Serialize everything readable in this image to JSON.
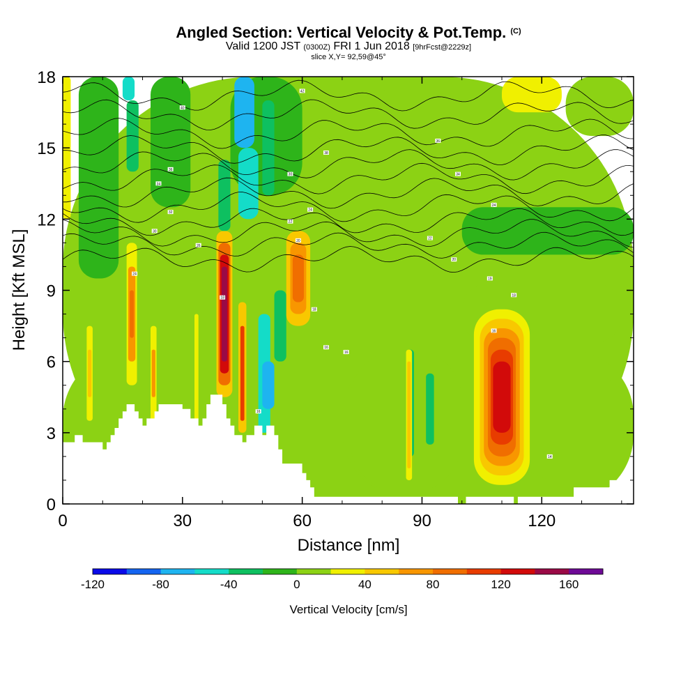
{
  "title": {
    "main": "Angled Section: Vertical Velocity & Pot.Temp.",
    "main_suffix": "(C)",
    "valid_prefix": "Valid 1200 JST",
    "valid_utc": "(0300Z)",
    "valid_date": "FRI 1 Jun 2018",
    "forecast": "[9hrFcst@2229z]",
    "slice": "slice X,Y= 92,59@45°"
  },
  "chart_data": {
    "type": "heatmap",
    "xlabel": "Distance [nm]",
    "ylabel": "Height [Kft MSL]",
    "xlim": [
      0,
      143
    ],
    "ylim": [
      0,
      18
    ],
    "x_ticks": [
      0,
      30,
      60,
      90,
      120
    ],
    "y_ticks": [
      0,
      3,
      6,
      9,
      12,
      15,
      18
    ],
    "colorbar": {
      "label": "Vertical Velocity [cm/s]",
      "min": -120,
      "max": 180,
      "step": 20,
      "tick_values": [
        -120,
        -80,
        -40,
        0,
        40,
        80,
        120,
        160
      ],
      "colors": [
        "#0a0ae8",
        "#1464f0",
        "#1eb4f0",
        "#14dcc8",
        "#0ec060",
        "#2eb41a",
        "#8cd214",
        "#f0f000",
        "#f8c800",
        "#f89600",
        "#f06e00",
        "#e83c00",
        "#d20a0a",
        "#9a0a46",
        "#6e0a96"
      ]
    },
    "background_value": 0,
    "cells": [
      {
        "x0": 0,
        "x1": 143,
        "y0": 0,
        "y1": 18,
        "v": 10
      },
      {
        "x0": 0,
        "x1": 143,
        "y0": 0,
        "y1": 6.5,
        "v": 10
      },
      {
        "x0": 70,
        "x1": 143,
        "y0": 0.3,
        "y1": 6.5,
        "v": 10
      },
      {
        "x0": 72,
        "x1": 100,
        "y0": 0.5,
        "y1": 6.5,
        "v": 0
      },
      {
        "x0": 112,
        "x1": 143,
        "y0": 1.0,
        "y1": 5.5,
        "v": 0
      },
      {
        "x0": 100,
        "x1": 140,
        "y0": 6.8,
        "y1": 9.3,
        "v": 0
      },
      {
        "x0": 60,
        "x1": 100,
        "y0": 9.5,
        "y1": 13.5,
        "v": 0
      },
      {
        "x0": 100,
        "x1": 143,
        "y0": 10.5,
        "y1": 12.5,
        "v": -10
      },
      {
        "x0": 4,
        "x1": 14,
        "y0": 9.5,
        "y1": 18,
        "v": -10
      },
      {
        "x0": 22,
        "x1": 32,
        "y0": 12.5,
        "y1": 18,
        "v": -10
      },
      {
        "x0": 42,
        "x1": 60,
        "y0": 13,
        "y1": 18,
        "v": -10
      },
      {
        "x0": 62,
        "x1": 82,
        "y0": 15,
        "y1": 18,
        "v": 0
      },
      {
        "x0": 100,
        "x1": 126,
        "y0": 13,
        "y1": 15.5,
        "v": 0
      },
      {
        "x0": 126,
        "x1": 143,
        "y0": 15.5,
        "y1": 18,
        "v": 10
      },
      {
        "x0": 110,
        "x1": 125,
        "y0": 16.5,
        "y1": 18,
        "v": 30
      },
      {
        "x0": 0,
        "x1": 2,
        "y0": 12,
        "y1": 18,
        "v": 30
      },
      {
        "x0": 8,
        "x1": 14,
        "y0": 3,
        "y1": 9,
        "v": 0
      },
      {
        "x0": 20,
        "x1": 28,
        "y0": 3,
        "y1": 9,
        "v": 0
      },
      {
        "x0": 30,
        "x1": 36,
        "y0": 4,
        "y1": 9,
        "v": 0
      },
      {
        "x0": 15,
        "x1": 18,
        "y0": 17,
        "y1": 18,
        "v": -50
      },
      {
        "x0": 16,
        "x1": 19,
        "y0": 14,
        "y1": 17,
        "v": -40
      },
      {
        "x0": 43,
        "x1": 48,
        "y0": 15,
        "y1": 18,
        "v": -70
      },
      {
        "x0": 44,
        "x1": 49,
        "y0": 12,
        "y1": 15,
        "v": -50
      },
      {
        "x0": 50,
        "x1": 53,
        "y0": 13,
        "y1": 17,
        "v": -30
      },
      {
        "x0": 39,
        "x1": 42,
        "y0": 11.5,
        "y1": 14.5,
        "v": -40
      },
      {
        "x0": 49,
        "x1": 52,
        "y0": 3,
        "y1": 8,
        "v": -50
      },
      {
        "x0": 50,
        "x1": 53,
        "y0": 4,
        "y1": 6,
        "v": -70
      },
      {
        "x0": 53,
        "x1": 56,
        "y0": 6,
        "y1": 9,
        "v": -30
      },
      {
        "x0": 86,
        "x1": 88,
        "y0": 2,
        "y1": 6.5,
        "v": -30
      },
      {
        "x0": 91,
        "x1": 93,
        "y0": 2.5,
        "y1": 5.5,
        "v": -30
      },
      {
        "x0": 6,
        "x1": 7.5,
        "y0": 3.5,
        "y1": 7.5,
        "v": 30
      },
      {
        "x0": 6.3,
        "x1": 7.2,
        "y0": 4.5,
        "y1": 6.5,
        "v": 50
      },
      {
        "x0": 16,
        "x1": 18.6,
        "y0": 5.0,
        "y1": 11,
        "v": 30
      },
      {
        "x0": 16.4,
        "x1": 18.2,
        "y0": 6,
        "y1": 10,
        "v": 70
      },
      {
        "x0": 16.8,
        "x1": 17.8,
        "y0": 7,
        "y1": 9,
        "v": 90
      },
      {
        "x0": 22,
        "x1": 23.5,
        "y0": 3.5,
        "y1": 7.5,
        "v": 30
      },
      {
        "x0": 22.3,
        "x1": 23.2,
        "y0": 4.5,
        "y1": 6.5,
        "v": 70
      },
      {
        "x0": 33,
        "x1": 34,
        "y0": 3.5,
        "y1": 8,
        "v": 30
      },
      {
        "x0": 38.5,
        "x1": 42.5,
        "y0": 4.5,
        "y1": 11.5,
        "v": 50
      },
      {
        "x0": 39,
        "x1": 42,
        "y0": 5,
        "y1": 11,
        "v": 90
      },
      {
        "x0": 39.4,
        "x1": 41.6,
        "y0": 5.5,
        "y1": 10.5,
        "v": 130
      },
      {
        "x0": 39.8,
        "x1": 41.2,
        "y0": 6,
        "y1": 10,
        "v": 150
      },
      {
        "x0": 44,
        "x1": 46,
        "y0": 3,
        "y1": 8.5,
        "v": 50
      },
      {
        "x0": 44.5,
        "x1": 45.5,
        "y0": 3.5,
        "y1": 7.5,
        "v": 110
      },
      {
        "x0": 56,
        "x1": 62,
        "y0": 7.5,
        "y1": 11.5,
        "v": 50
      },
      {
        "x0": 57,
        "x1": 61,
        "y0": 8,
        "y1": 11,
        "v": 70
      },
      {
        "x0": 57.6,
        "x1": 60.4,
        "y0": 8.5,
        "y1": 10.5,
        "v": 90
      },
      {
        "x0": 86,
        "x1": 87.5,
        "y0": 1,
        "y1": 6.5,
        "v": 30
      },
      {
        "x0": 86.3,
        "x1": 87.2,
        "y0": 1.5,
        "y1": 6,
        "v": 50
      },
      {
        "x0": 103,
        "x1": 117,
        "y0": 0.8,
        "y1": 8.2,
        "v": 30
      },
      {
        "x0": 104.5,
        "x1": 115.5,
        "y0": 1.2,
        "y1": 7.8,
        "v": 50
      },
      {
        "x0": 105.5,
        "x1": 114.5,
        "y0": 1.6,
        "y1": 7.4,
        "v": 70
      },
      {
        "x0": 106.5,
        "x1": 113.5,
        "y0": 2,
        "y1": 7,
        "v": 90
      },
      {
        "x0": 107.2,
        "x1": 112.8,
        "y0": 2.5,
        "y1": 6.5,
        "v": 110
      },
      {
        "x0": 107.8,
        "x1": 112.2,
        "y0": 3,
        "y1": 6,
        "v": 130
      }
    ],
    "terrain_height": [
      [
        0,
        2.6
      ],
      [
        3,
        2.6
      ],
      [
        3,
        2.9
      ],
      [
        5,
        2.9
      ],
      [
        5,
        2.6
      ],
      [
        10,
        2.6
      ],
      [
        10,
        2.3
      ],
      [
        11,
        2.3
      ],
      [
        11,
        2.6
      ],
      [
        12,
        2.6
      ],
      [
        12,
        2.9
      ],
      [
        13,
        2.9
      ],
      [
        13,
        3.2
      ],
      [
        14,
        3.2
      ],
      [
        14,
        3.6
      ],
      [
        15,
        3.6
      ],
      [
        15,
        3.9
      ],
      [
        16,
        3.9
      ],
      [
        16,
        4.2
      ],
      [
        18,
        4.2
      ],
      [
        18,
        3.9
      ],
      [
        19,
        3.9
      ],
      [
        19,
        3.6
      ],
      [
        20,
        3.6
      ],
      [
        20,
        3.3
      ],
      [
        21,
        3.3
      ],
      [
        21,
        3.6
      ],
      [
        23,
        3.6
      ],
      [
        23,
        3.9
      ],
      [
        24,
        3.9
      ],
      [
        24,
        4.2
      ],
      [
        27,
        4.2
      ],
      [
        27,
        4.2
      ],
      [
        30,
        4.2
      ],
      [
        30,
        4.0
      ],
      [
        32,
        4.0
      ],
      [
        32,
        3.6
      ],
      [
        34,
        3.6
      ],
      [
        34,
        3.3
      ],
      [
        35,
        3.3
      ],
      [
        35,
        3.6
      ],
      [
        36,
        3.6
      ],
      [
        36,
        4.2
      ],
      [
        37,
        4.2
      ],
      [
        37,
        4.6
      ],
      [
        40,
        4.6
      ],
      [
        40,
        4.2
      ],
      [
        41,
        4.2
      ],
      [
        41,
        3.6
      ],
      [
        42,
        3.6
      ],
      [
        42,
        3.3
      ],
      [
        43,
        3.3
      ],
      [
        43,
        2.9
      ],
      [
        45,
        2.9
      ],
      [
        45,
        2.6
      ],
      [
        46,
        2.6
      ],
      [
        46,
        2.9
      ],
      [
        48,
        2.9
      ],
      [
        48,
        3.3
      ],
      [
        50,
        3.3
      ],
      [
        50,
        2.9
      ],
      [
        51,
        2.9
      ],
      [
        51,
        3.3
      ],
      [
        53,
        3.3
      ],
      [
        53,
        2.9
      ],
      [
        54,
        2.9
      ],
      [
        54,
        2.3
      ],
      [
        55,
        2.3
      ],
      [
        55,
        1.7
      ],
      [
        57,
        1.7
      ],
      [
        57,
        1.7
      ],
      [
        60,
        1.7
      ],
      [
        60,
        1.3
      ],
      [
        61,
        1.3
      ],
      [
        61,
        1.0
      ],
      [
        62,
        1.0
      ],
      [
        62,
        0.7
      ],
      [
        63,
        0.7
      ],
      [
        63,
        0.3
      ],
      [
        65,
        0.3
      ],
      [
        65,
        0.3
      ],
      [
        99,
        0.3
      ],
      [
        99,
        0.0
      ],
      [
        101,
        0.0
      ],
      [
        101,
        0.3
      ],
      [
        104,
        0.3
      ],
      [
        104,
        0.3
      ],
      [
        113,
        0.3
      ],
      [
        113,
        0.0
      ],
      [
        114,
        0.0
      ],
      [
        114,
        0.3
      ],
      [
        128,
        0.3
      ],
      [
        128,
        0.7
      ],
      [
        137,
        0.7
      ],
      [
        137,
        1.0
      ],
      [
        143,
        1.0
      ]
    ],
    "theta_contours": [
      {
        "base": 10.3,
        "amp": 0.3
      },
      {
        "base": 10.9,
        "amp": 0.3
      },
      {
        "base": 11.4,
        "amp": 0.35
      },
      {
        "base": 11.9,
        "amp": 0.35
      },
      {
        "base": 12.5,
        "amp": 0.4
      },
      {
        "base": 13.1,
        "amp": 0.4
      },
      {
        "base": 13.7,
        "amp": 0.4
      },
      {
        "base": 14.3,
        "amp": 0.4
      },
      {
        "base": 14.9,
        "amp": 0.4
      },
      {
        "base": 15.6,
        "amp": 0.4
      },
      {
        "base": 16.4,
        "amp": 0.4
      },
      {
        "base": 17.2,
        "amp": 0.4
      }
    ],
    "contour_labels": [
      {
        "x": 30,
        "y": 16.7,
        "text": "40"
      },
      {
        "x": 27,
        "y": 14.1,
        "text": "36"
      },
      {
        "x": 24,
        "y": 13.5,
        "text": "34"
      },
      {
        "x": 27,
        "y": 12.3,
        "text": "32"
      },
      {
        "x": 23,
        "y": 11.5,
        "text": "30"
      },
      {
        "x": 34,
        "y": 10.9,
        "text": "26"
      },
      {
        "x": 18,
        "y": 9.7,
        "text": "24"
      },
      {
        "x": 40,
        "y": 8.7,
        "text": "18"
      },
      {
        "x": 57,
        "y": 11.9,
        "text": "22"
      },
      {
        "x": 60,
        "y": 17.4,
        "text": "42"
      },
      {
        "x": 66,
        "y": 14.8,
        "text": "38"
      },
      {
        "x": 57,
        "y": 13.9,
        "text": "30"
      },
      {
        "x": 62,
        "y": 12.4,
        "text": "24"
      },
      {
        "x": 59,
        "y": 11.1,
        "text": "20"
      },
      {
        "x": 63,
        "y": 8.2,
        "text": "18"
      },
      {
        "x": 66,
        "y": 6.6,
        "text": "16"
      },
      {
        "x": 71,
        "y": 6.4,
        "text": "16"
      },
      {
        "x": 94,
        "y": 15.3,
        "text": "36"
      },
      {
        "x": 99,
        "y": 13.9,
        "text": "34"
      },
      {
        "x": 108,
        "y": 12.6,
        "text": "24"
      },
      {
        "x": 92,
        "y": 11.2,
        "text": "22"
      },
      {
        "x": 98,
        "y": 10.3,
        "text": "20"
      },
      {
        "x": 107,
        "y": 9.5,
        "text": "19"
      },
      {
        "x": 113,
        "y": 8.8,
        "text": "18"
      },
      {
        "x": 108,
        "y": 7.3,
        "text": "16"
      },
      {
        "x": 49,
        "y": 3.9,
        "text": "16"
      },
      {
        "x": 122,
        "y": 2.0,
        "text": "14"
      }
    ]
  }
}
